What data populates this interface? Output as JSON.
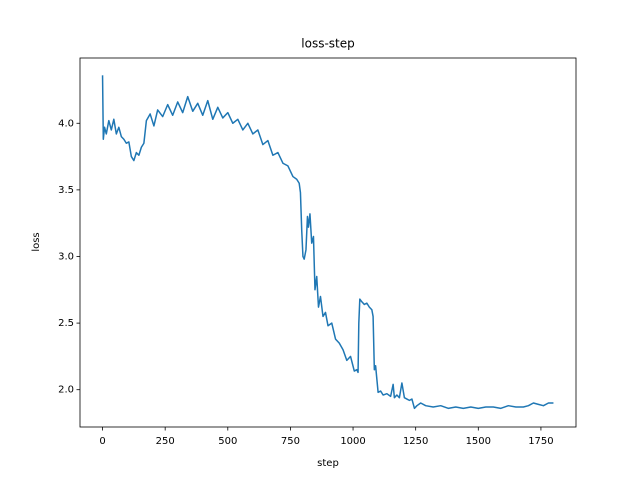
{
  "chart_data": {
    "type": "line",
    "title": "loss-step",
    "x_label": "step",
    "y_label": "loss",
    "x": [
      0,
      3,
      8,
      15,
      25,
      35,
      45,
      55,
      65,
      75,
      85,
      95,
      105,
      115,
      125,
      135,
      145,
      155,
      165,
      175,
      190,
      205,
      220,
      240,
      260,
      280,
      300,
      320,
      340,
      360,
      380,
      400,
      420,
      440,
      460,
      480,
      500,
      520,
      540,
      560,
      580,
      600,
      620,
      640,
      660,
      680,
      700,
      720,
      740,
      760,
      775,
      785,
      790,
      795,
      800,
      805,
      812,
      818,
      822,
      828,
      835,
      842,
      848,
      855,
      862,
      870,
      880,
      890,
      900,
      915,
      930,
      945,
      960,
      975,
      990,
      1005,
      1015,
      1020,
      1023,
      1027,
      1035,
      1045,
      1055,
      1065,
      1075,
      1080,
      1085,
      1090,
      1100,
      1110,
      1120,
      1135,
      1150,
      1160,
      1165,
      1175,
      1185,
      1195,
      1205,
      1215,
      1225,
      1235,
      1245,
      1255,
      1270,
      1290,
      1320,
      1350,
      1380,
      1410,
      1440,
      1470,
      1500,
      1530,
      1560,
      1590,
      1620,
      1650,
      1680,
      1700,
      1720,
      1740,
      1760,
      1780,
      1800
    ],
    "series": [
      {
        "name": "loss",
        "color": "#1f77b4",
        "values": [
          4.36,
          3.88,
          3.97,
          3.92,
          4.02,
          3.95,
          4.03,
          3.92,
          3.97,
          3.9,
          3.88,
          3.85,
          3.86,
          3.75,
          3.72,
          3.78,
          3.76,
          3.82,
          3.85,
          4.02,
          4.07,
          3.98,
          4.1,
          4.05,
          4.14,
          4.06,
          4.16,
          4.08,
          4.2,
          4.09,
          4.15,
          4.06,
          4.17,
          4.03,
          4.12,
          4.04,
          4.08,
          4.0,
          4.03,
          3.95,
          4.0,
          3.92,
          3.95,
          3.84,
          3.87,
          3.76,
          3.78,
          3.7,
          3.68,
          3.6,
          3.58,
          3.55,
          3.48,
          3.2,
          3.0,
          2.98,
          3.05,
          3.3,
          3.22,
          3.32,
          3.1,
          3.15,
          2.75,
          2.85,
          2.62,
          2.7,
          2.55,
          2.58,
          2.48,
          2.5,
          2.38,
          2.35,
          2.3,
          2.22,
          2.25,
          2.14,
          2.15,
          2.13,
          2.5,
          2.68,
          2.66,
          2.64,
          2.65,
          2.62,
          2.6,
          2.55,
          2.15,
          2.18,
          1.98,
          1.99,
          1.96,
          1.97,
          1.95,
          2.04,
          1.94,
          1.96,
          1.94,
          2.05,
          1.94,
          1.93,
          1.92,
          1.93,
          1.86,
          1.88,
          1.9,
          1.88,
          1.87,
          1.88,
          1.86,
          1.87,
          1.86,
          1.87,
          1.86,
          1.87,
          1.87,
          1.86,
          1.88,
          1.87,
          1.87,
          1.88,
          1.9,
          1.89,
          1.88,
          1.9,
          1.9
        ]
      }
    ],
    "xlim": [
      -90,
      1890
    ],
    "ylim": [
      1.72,
      4.49
    ],
    "xticks": [
      0,
      250,
      500,
      750,
      1000,
      1250,
      1500,
      1750
    ],
    "yticks": [
      {
        "value": 2,
        "label": "2.0"
      },
      2.5,
      {
        "value": 3,
        "label": "3.0"
      },
      3.5,
      {
        "value": 4,
        "label": "4.0"
      }
    ]
  }
}
